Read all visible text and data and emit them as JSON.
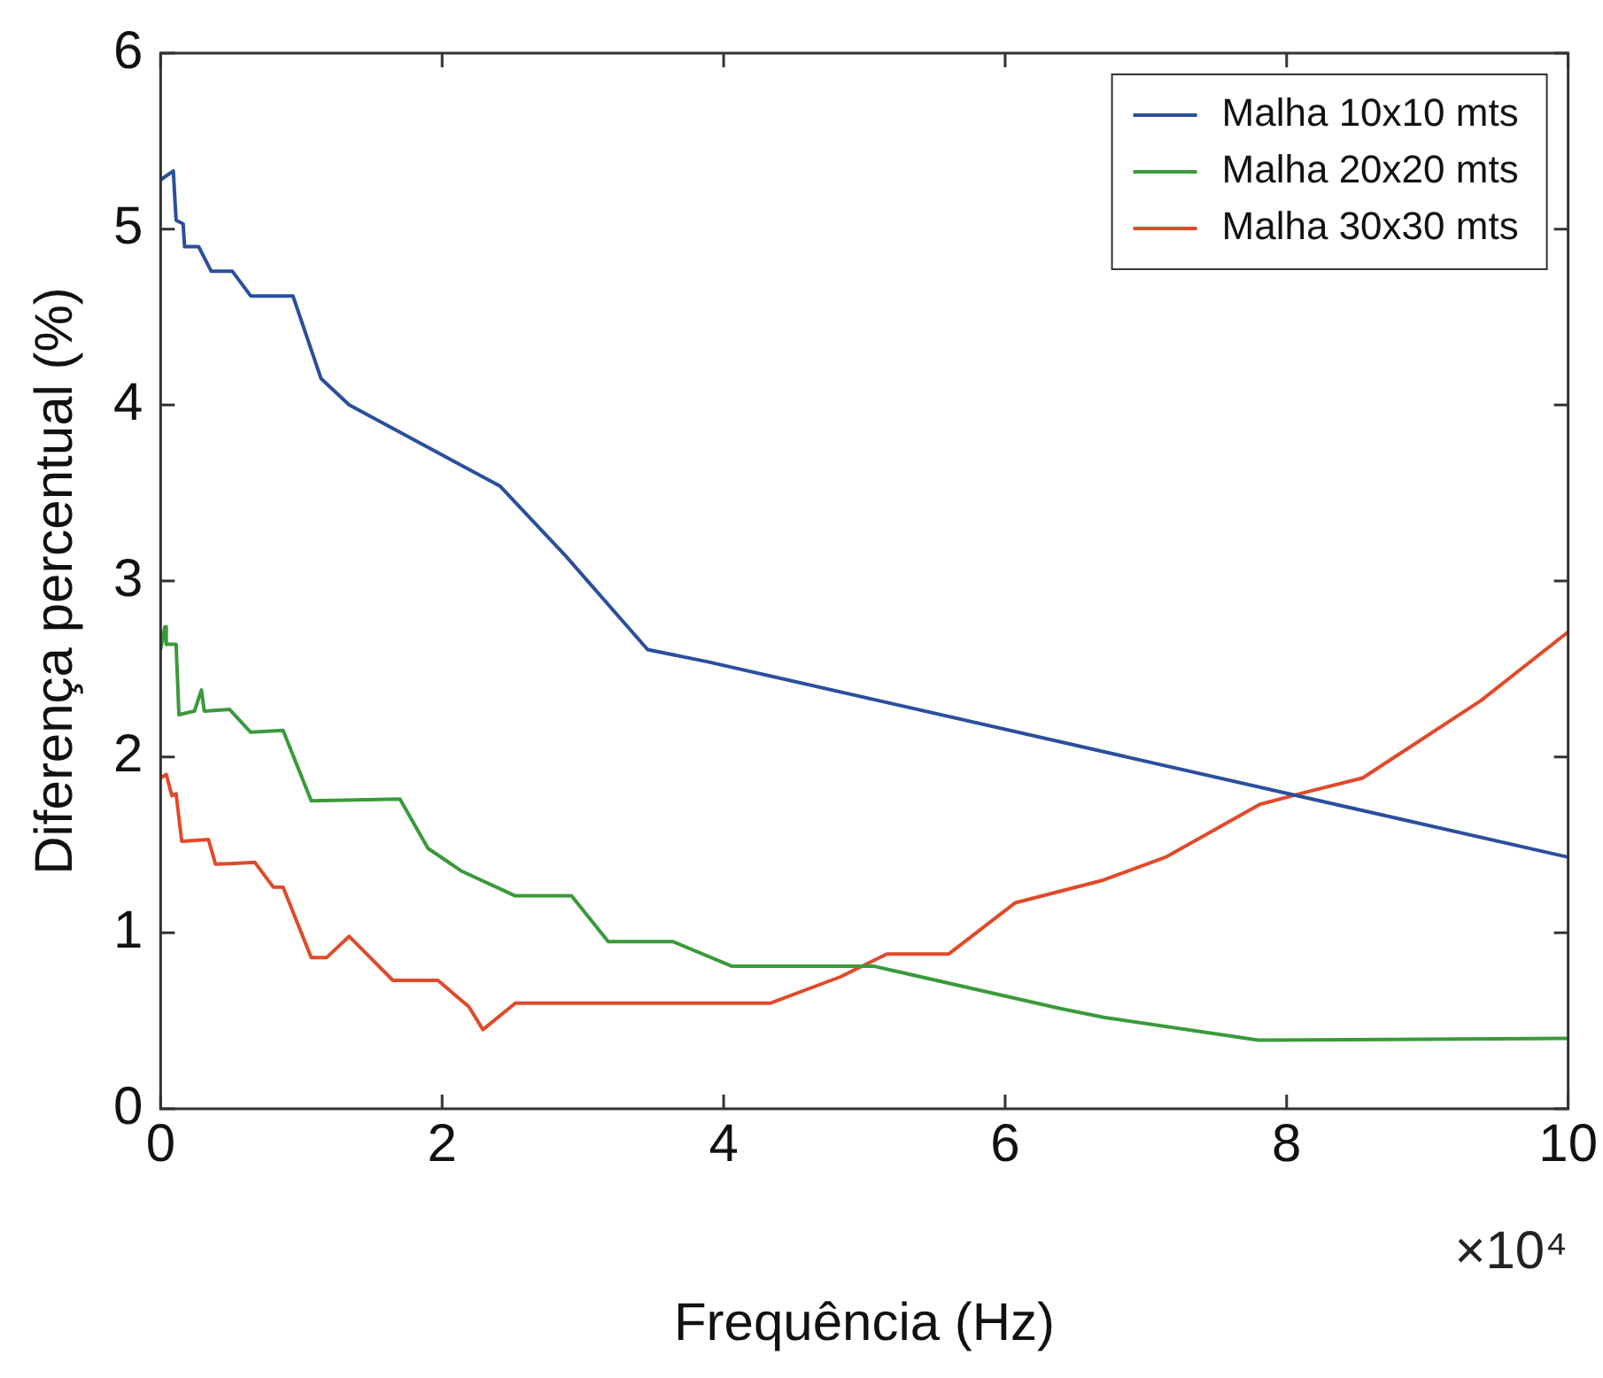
{
  "chart_data": {
    "type": "line",
    "xlabel": "Frequência (Hz)",
    "ylabel": "Diferença percentual (%)",
    "annotations": [
      "×10⁴"
    ],
    "xlim": [
      0,
      10
    ],
    "xticks": [
      0,
      2,
      4,
      6,
      8,
      10
    ],
    "ylim": [
      0,
      6
    ],
    "yticks": [
      0,
      1,
      2,
      3,
      4,
      5,
      6
    ],
    "grid": false,
    "legend": "top right",
    "marker": "none",
    "line_style": "solid",
    "series": [
      {
        "name": "Malha 10x10 mts",
        "color": "#2a4f9c",
        "x": [
          0,
          0.09,
          0.11,
          0.16,
          0.17,
          0.27,
          0.36,
          0.51,
          0.64,
          0.94,
          1.14,
          1.34,
          2.41,
          2.88,
          3.46,
          3.89,
          10
        ],
        "values": [
          5.28,
          5.33,
          5.05,
          5.03,
          4.9,
          4.9,
          4.76,
          4.76,
          4.62,
          4.62,
          4.15,
          4.0,
          3.54,
          3.14,
          2.61,
          2.54,
          1.43
        ]
      },
      {
        "name": "Malha 20x20 mts",
        "color": "#3a9a3a",
        "x": [
          0,
          0.03,
          0.04,
          0.11,
          0.13,
          0.24,
          0.29,
          0.31,
          0.49,
          0.64,
          0.87,
          1.07,
          1.7,
          1.9,
          2.14,
          2.52,
          2.92,
          3.18,
          3.64,
          4.06,
          5.07,
          6.39,
          6.7,
          7.8,
          10
        ],
        "values": [
          2.61,
          2.74,
          2.64,
          2.64,
          2.24,
          2.26,
          2.38,
          2.26,
          2.27,
          2.14,
          2.15,
          1.75,
          1.76,
          1.48,
          1.35,
          1.21,
          1.21,
          0.95,
          0.95,
          0.81,
          0.81,
          0.57,
          0.52,
          0.39,
          0.4
        ]
      },
      {
        "name": "Malha 30x30 mts",
        "color": "#e04a2a",
        "x": [
          0,
          0.04,
          0.08,
          0.11,
          0.15,
          0.34,
          0.39,
          0.67,
          0.8,
          0.87,
          1.07,
          1.18,
          1.34,
          1.65,
          1.97,
          2.19,
          2.29,
          2.52,
          4.33,
          4.83,
          5.16,
          5.6,
          6.07,
          6.7,
          7.14,
          7.81,
          8.14,
          8.54,
          9.38,
          10
        ],
        "values": [
          1.88,
          1.9,
          1.78,
          1.79,
          1.52,
          1.53,
          1.39,
          1.4,
          1.26,
          1.26,
          0.86,
          0.86,
          0.98,
          0.73,
          0.73,
          0.58,
          0.45,
          0.6,
          0.6,
          0.75,
          0.88,
          0.88,
          1.17,
          1.3,
          1.43,
          1.73,
          1.8,
          1.88,
          2.32,
          2.71
        ]
      }
    ]
  }
}
